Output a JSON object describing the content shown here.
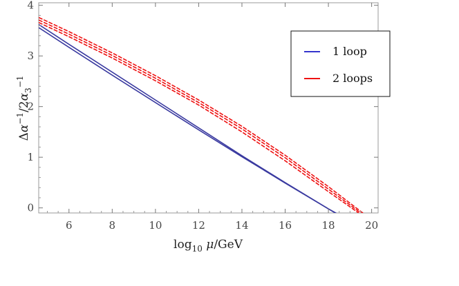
{
  "chart_data": {
    "type": "line",
    "xlabel": "log10 μ/GeV",
    "ylabel": "Δα⁻¹/2α₃⁻¹",
    "xlim": [
      4.6,
      20.3
    ],
    "ylim": [
      -0.1,
      4.05
    ],
    "xticks": [
      6,
      8,
      10,
      12,
      14,
      16,
      18,
      20
    ],
    "yticks": [
      0,
      1,
      2,
      3,
      4
    ],
    "grid": false,
    "legend_position": "top-right",
    "legend": [
      {
        "label": "1 loop",
        "color": "#3333cc",
        "style": "solid"
      },
      {
        "label": "2 loops",
        "color": "#ee1111",
        "style": "dashed"
      }
    ],
    "series": [
      {
        "group": "1 loop",
        "color": "#3a3aa0",
        "dash": "solid",
        "x": [
          4.6,
          6,
          8,
          10,
          12,
          14,
          16,
          18,
          19.1
        ],
        "y": [
          3.56,
          3.17,
          2.62,
          2.08,
          1.54,
          1.01,
          0.49,
          -0.02,
          -0.3
        ]
      },
      {
        "group": "1 loop",
        "color": "#3a3aa0",
        "dash": "solid",
        "x": [
          4.6,
          6,
          8,
          10,
          12,
          14,
          16,
          18,
          19.2
        ],
        "y": [
          3.62,
          3.23,
          2.68,
          2.13,
          1.58,
          1.03,
          0.5,
          -0.02,
          -0.3
        ]
      },
      {
        "group": "2 loops",
        "color": "#ee1111",
        "dash": "dashed",
        "x": [
          4.6,
          6,
          8,
          10,
          12,
          14,
          16,
          18,
          19.5,
          20
        ],
        "y": [
          3.66,
          3.38,
          2.96,
          2.51,
          2.03,
          1.5,
          0.93,
          0.32,
          -0.13,
          -0.3
        ]
      },
      {
        "group": "2 loops",
        "color": "#ee1111",
        "dash": "dashed",
        "x": [
          4.6,
          6,
          8,
          10,
          12,
          14,
          16,
          18,
          19.5,
          20
        ],
        "y": [
          3.71,
          3.43,
          3.01,
          2.56,
          2.08,
          1.56,
          0.99,
          0.37,
          -0.1,
          -0.27
        ]
      },
      {
        "group": "2 loops",
        "color": "#ee1111",
        "dash": "dashed",
        "x": [
          4.6,
          6,
          8,
          10,
          12,
          14,
          16,
          18,
          19.5,
          20
        ],
        "y": [
          3.76,
          3.48,
          3.06,
          2.61,
          2.13,
          1.61,
          1.04,
          0.42,
          -0.07,
          -0.24
        ]
      }
    ]
  }
}
